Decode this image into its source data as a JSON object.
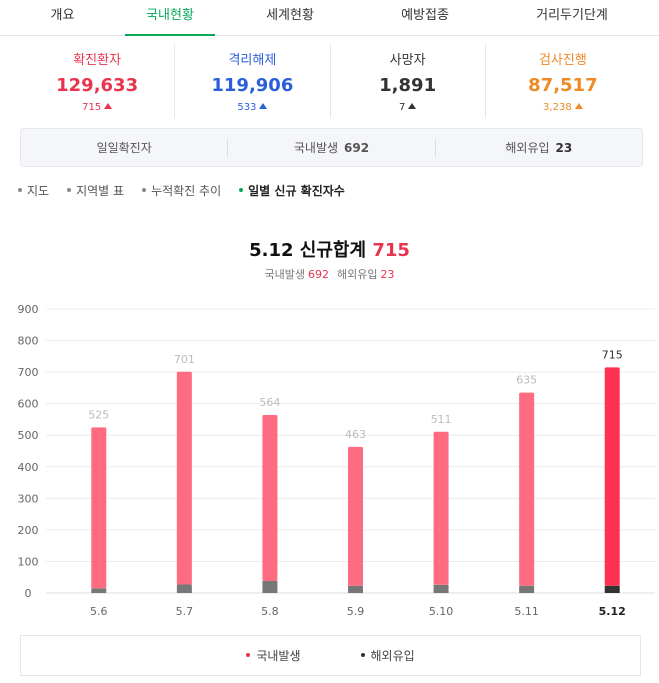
{
  "tabs": [
    {
      "label": "개요",
      "active": false
    },
    {
      "label": "국내현황",
      "active": true
    },
    {
      "label": "세계현황",
      "active": false
    },
    {
      "label": "예방접종",
      "active": false
    },
    {
      "label": "거리두기단계",
      "active": false
    }
  ],
  "stats": [
    {
      "label": "확진환자",
      "value": "129,633",
      "delta": "715",
      "color": "#e8344e"
    },
    {
      "label": "격리해제",
      "value": "119,906",
      "delta": "533",
      "color": "#2b5fd9"
    },
    {
      "label": "사망자",
      "value": "1,891",
      "delta": "7",
      "color": "#333333"
    },
    {
      "label": "검사진행",
      "value": "87,517",
      "delta": "3,238",
      "color": "#f08a24"
    }
  ],
  "daily": {
    "label": "일일확진자",
    "domestic_label": "국내발생",
    "domestic_value": "692",
    "overseas_label": "해외유입",
    "overseas_value": "23"
  },
  "subnav": [
    {
      "label": "지도",
      "active": false
    },
    {
      "label": "지역별 표",
      "active": false
    },
    {
      "label": "누적확진 추이",
      "active": false
    },
    {
      "label": "일별 신규 확진자수",
      "active": true
    }
  ],
  "chart_header": {
    "title_prefix": "5.12 신규합계",
    "title_value": "715",
    "sub_domestic_label": "국내발생",
    "sub_domestic_value": "692",
    "sub_overseas_label": "해외유입",
    "sub_overseas_value": "23"
  },
  "chart_data": {
    "type": "bar",
    "categories": [
      "5.6",
      "5.7",
      "5.8",
      "5.9",
      "5.10",
      "5.11",
      "5.12"
    ],
    "totals": [
      525,
      701,
      564,
      463,
      511,
      635,
      715
    ],
    "series": [
      {
        "name": "국내발생",
        "values": [
          510,
          674,
          526,
          440,
          485,
          612,
          692
        ],
        "color": "#ff6b81",
        "highlight_color": "#ff3150"
      },
      {
        "name": "해외유입",
        "values": [
          15,
          27,
          38,
          23,
          26,
          23,
          23
        ],
        "color": "#777777",
        "highlight_color": "#333333"
      }
    ],
    "highlight_index": 6,
    "yticks": [
      0,
      100,
      200,
      300,
      400,
      500,
      600,
      700,
      800,
      900
    ],
    "ylim": [
      0,
      900
    ],
    "grid": true,
    "stacked": true,
    "legend": "bottom-center"
  },
  "legend": [
    {
      "label": "국내발생",
      "color": "#e8344e"
    },
    {
      "label": "해외유입",
      "color": "#333333"
    }
  ]
}
